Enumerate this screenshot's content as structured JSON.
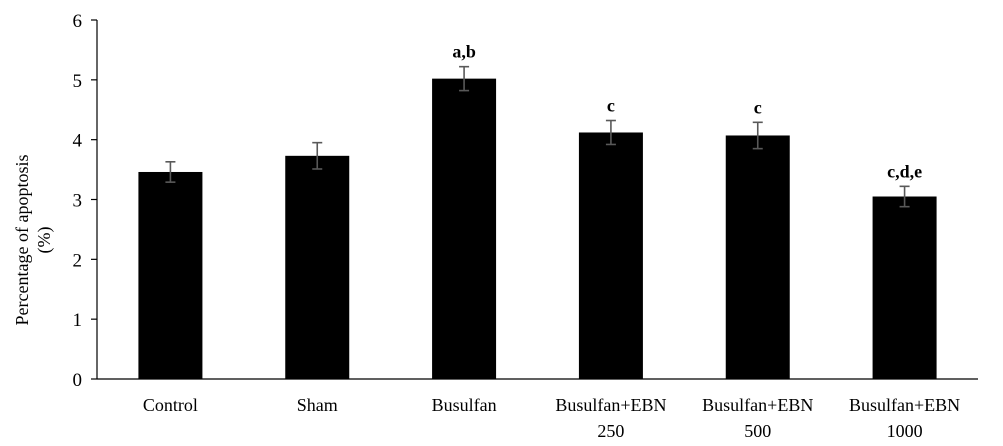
{
  "chart_data": {
    "type": "bar",
    "categories": [
      [
        "Control"
      ],
      [
        "Sham"
      ],
      [
        "Busulfan"
      ],
      [
        "Busulfan+EBN",
        "250"
      ],
      [
        "Busulfan+EBN",
        "500"
      ],
      [
        "Busulfan+EBN",
        "1000"
      ]
    ],
    "values": [
      3.46,
      3.73,
      5.02,
      4.12,
      4.07,
      3.05
    ],
    "errors": [
      0.17,
      0.22,
      0.2,
      0.2,
      0.22,
      0.17
    ],
    "annotations": [
      "",
      "",
      "a,b",
      "c",
      "c",
      "c,d,e"
    ],
    "ylabel": [
      "Percentage of apoptosis",
      "(%)"
    ],
    "ylim": [
      0,
      6
    ],
    "yticks": [
      "0",
      "1",
      "2",
      "3",
      "4",
      "5",
      "6"
    ],
    "grid": false,
    "bar_color": "#000000",
    "error_color": "#595959"
  }
}
